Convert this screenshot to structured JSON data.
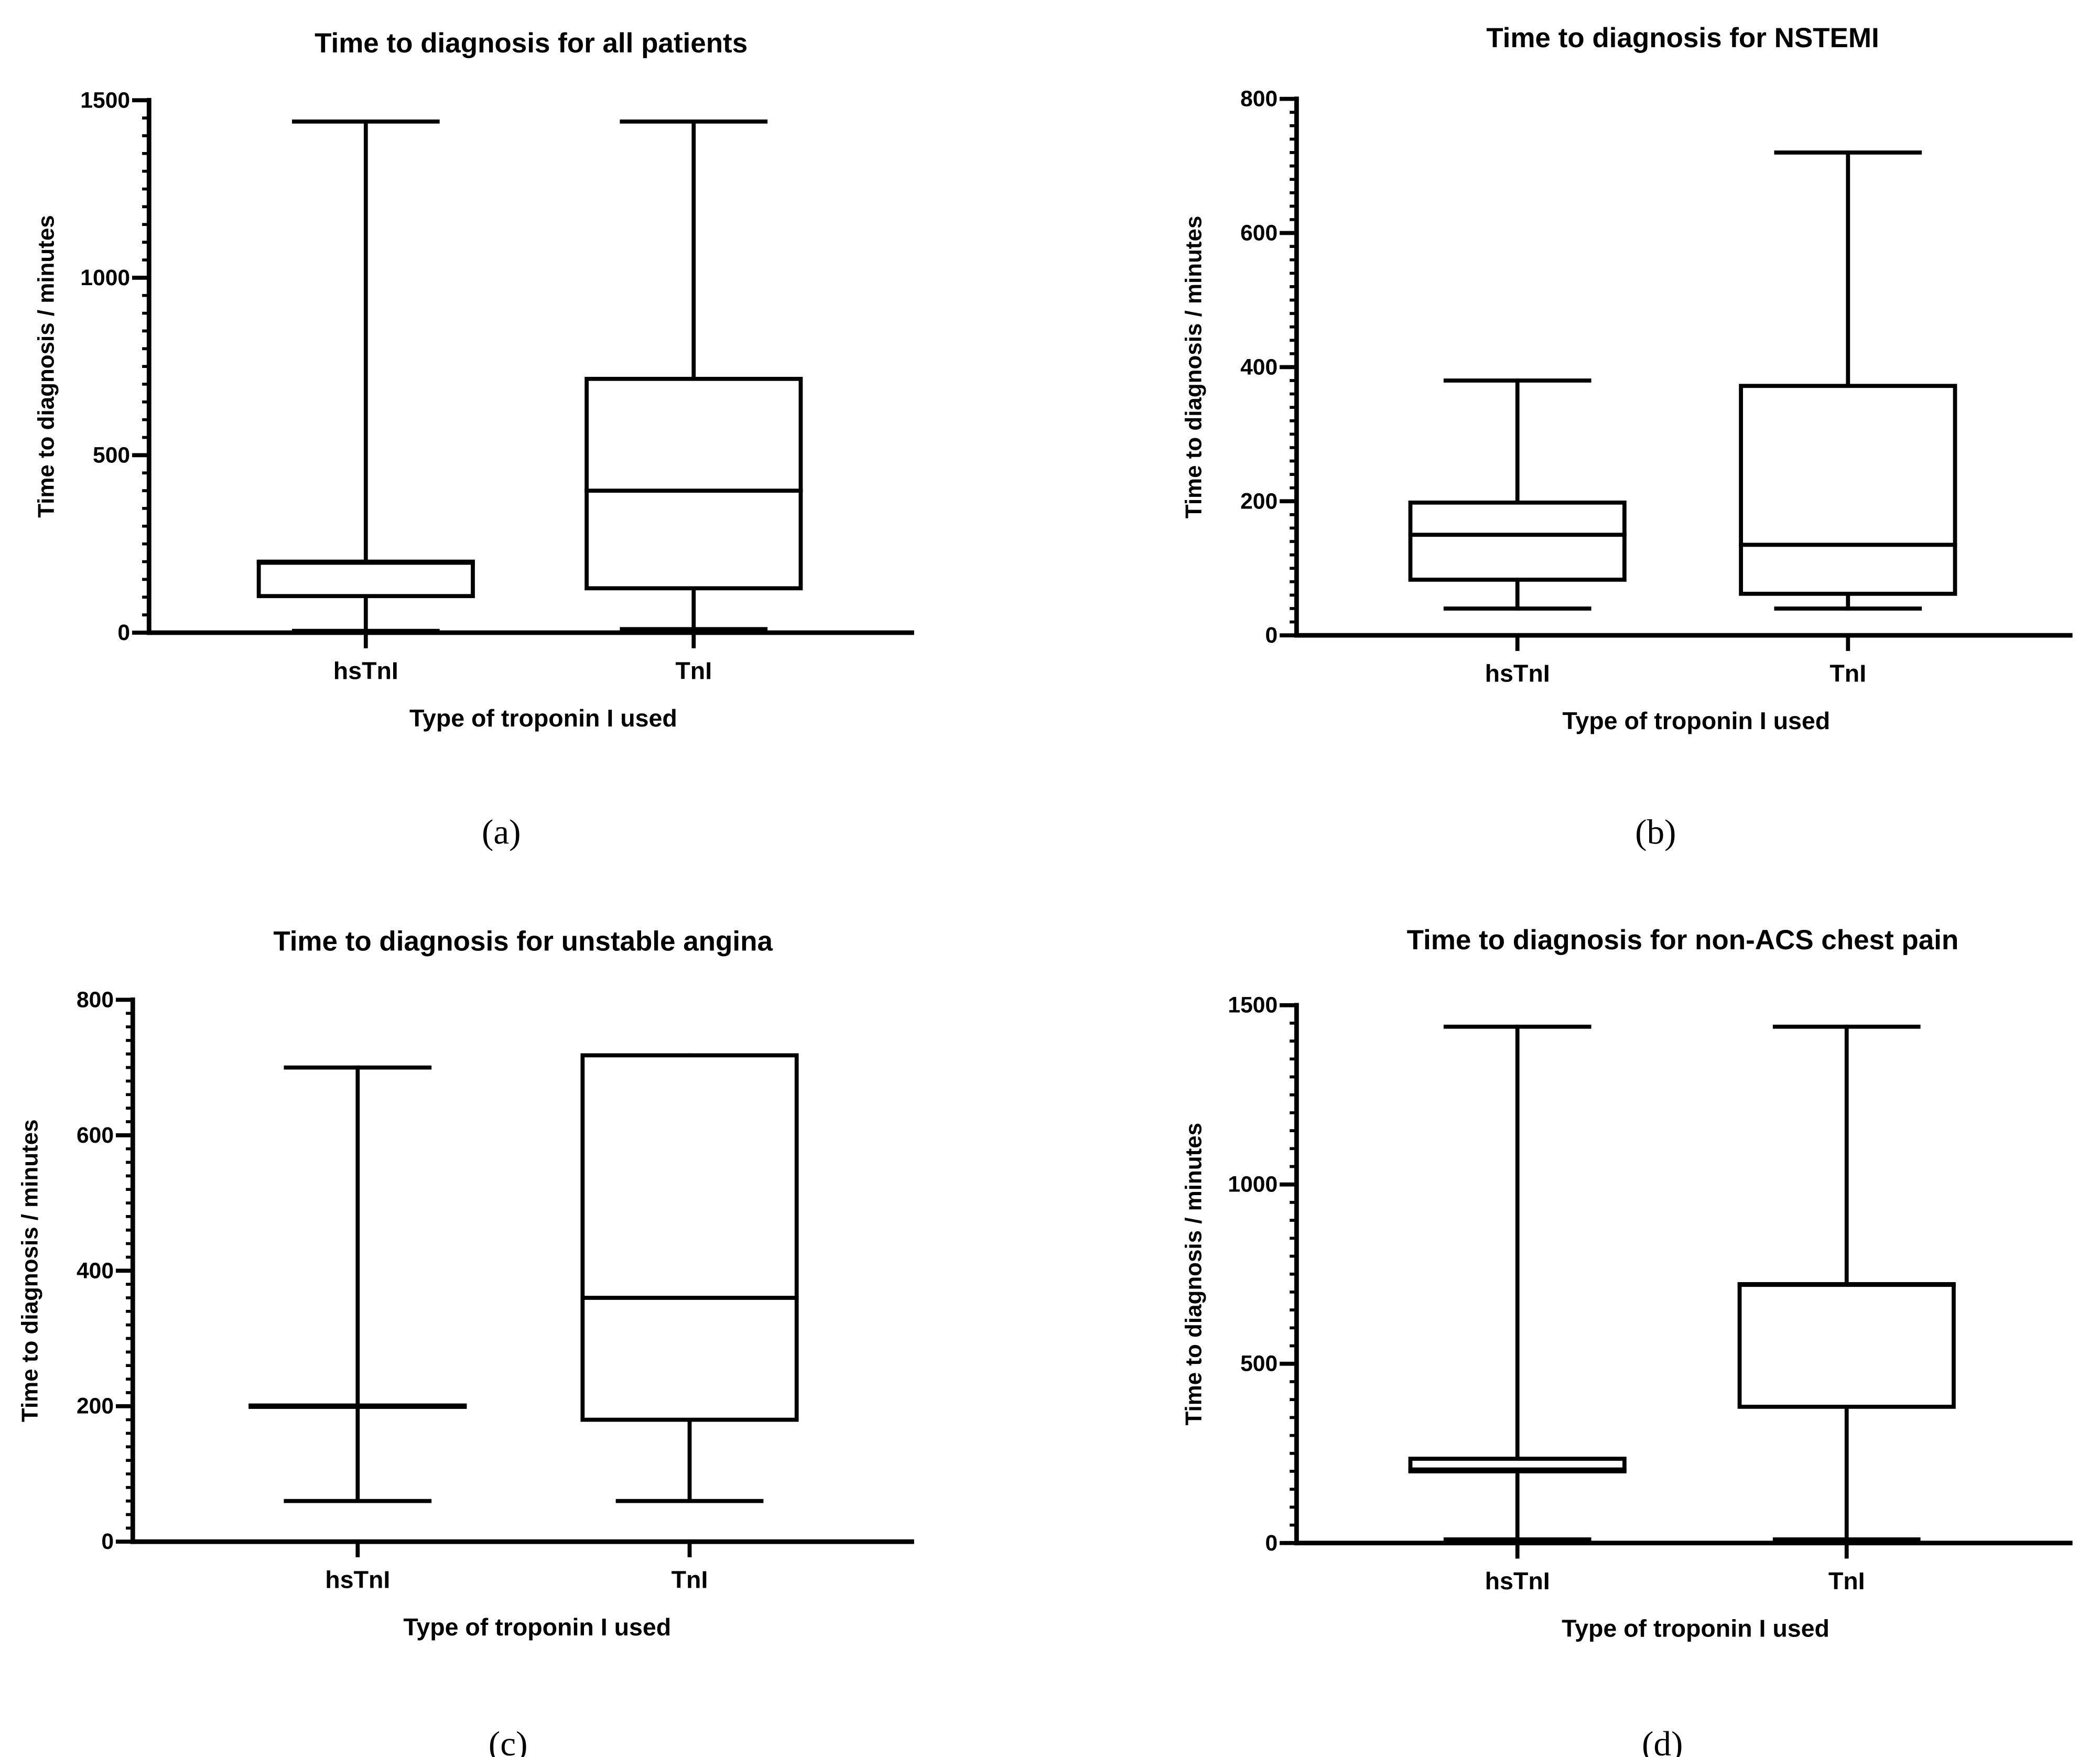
{
  "chart_data": [
    {
      "type": "boxplot",
      "panel_label": "(a)",
      "title": "Time to diagnosis for all patients",
      "xlabel": "Type of troponin I used",
      "ylabel": "Time to diagnosis / minutes",
      "ylim": [
        0,
        1500
      ],
      "ytick_step": 500,
      "yminor_step": 50,
      "ytick_labels": [
        "0",
        "500",
        "1000",
        "1500"
      ],
      "categories": [
        "hsTnI",
        "TnI"
      ],
      "boxes": [
        {
          "name": "hsTnI",
          "min": 5,
          "q1": 103,
          "median": 197,
          "q3": 200,
          "max": 1440
        },
        {
          "name": "TnI",
          "min": 10,
          "q1": 125,
          "median": 400,
          "q3": 715,
          "max": 1440
        }
      ]
    },
    {
      "type": "boxplot",
      "panel_label": "(b)",
      "title": "Time to diagnosis for NSTEMI",
      "xlabel": "Type of troponin I used",
      "ylabel": "Time to diagnosis / minutes",
      "ylim": [
        0,
        800
      ],
      "ytick_step": 200,
      "yminor_step": 20,
      "ytick_labels": [
        "0",
        "200",
        "400",
        "600",
        "800"
      ],
      "categories": [
        "hsTnI",
        "TnI"
      ],
      "boxes": [
        {
          "name": "hsTnI",
          "min": 40,
          "q1": 83,
          "median": 150,
          "q3": 198,
          "max": 380
        },
        {
          "name": "TnI",
          "min": 40,
          "q1": 62,
          "median": 135,
          "q3": 372,
          "max": 720
        }
      ]
    },
    {
      "type": "boxplot",
      "panel_label": "(c)",
      "title": "Time to diagnosis for unstable angina",
      "xlabel": "Type of troponin I used",
      "ylabel": "Time to diagnosis / minutes",
      "ylim": [
        0,
        800
      ],
      "ytick_step": 200,
      "yminor_step": 20,
      "ytick_labels": [
        "0",
        "200",
        "400",
        "600",
        "800"
      ],
      "categories": [
        "hsTnI",
        "TnI"
      ],
      "boxes": [
        {
          "name": "hsTnI",
          "min": 60,
          "q1": 199,
          "median": 200,
          "q3": 201,
          "max": 700
        },
        {
          "name": "TnI",
          "min": 60,
          "q1": 180,
          "median": 360,
          "q3": 718,
          "max": 718
        }
      ]
    },
    {
      "type": "boxplot",
      "panel_label": "(d)",
      "title": "Time to diagnosis for non-ACS chest pain",
      "xlabel": "Type of troponin I used",
      "ylabel": "Time to diagnosis / minutes",
      "ylim": [
        0,
        1500
      ],
      "ytick_step": 500,
      "yminor_step": 50,
      "ytick_labels": [
        "0",
        "500",
        "1000",
        "1500"
      ],
      "categories": [
        "hsTnI",
        "TnI"
      ],
      "boxes": [
        {
          "name": "hsTnI",
          "min": 10,
          "q1": 200,
          "median": 205,
          "q3": 235,
          "max": 1440
        },
        {
          "name": "TnI",
          "min": 10,
          "q1": 380,
          "median": 720,
          "q3": 722,
          "max": 1440
        }
      ]
    }
  ]
}
